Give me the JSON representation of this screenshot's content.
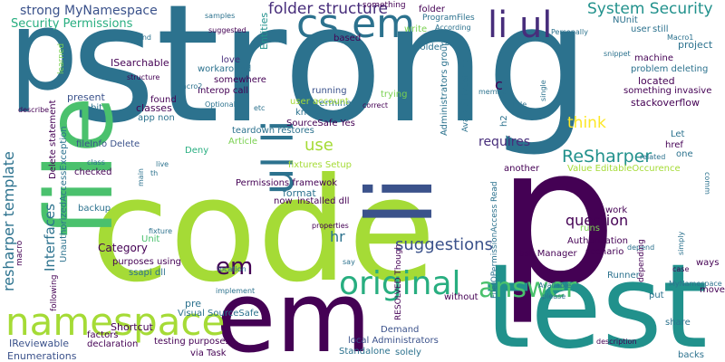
{
  "palette": {
    "lime": "#a5db36",
    "green": "#4ac16d",
    "teal": "#2c728e",
    "blue": "#3b528b",
    "indigo": "#472d7b",
    "darkpurple": "#440154",
    "cyan": "#21918c",
    "turq": "#28ae80",
    "yellowgreen": "#7ad151",
    "yellow": "#fde725"
  },
  "words": [
    {
      "text": "strong",
      "color": "teal"
    },
    {
      "text": "code",
      "color": "lime"
    },
    {
      "text": "p",
      "color": "darkpurple"
    },
    {
      "text": "test",
      "color": "cyan"
    },
    {
      "text": "em",
      "color": "darkpurple"
    },
    {
      "text": "p",
      "color": "teal"
    },
    {
      "text": "file",
      "color": "green"
    },
    {
      "text": "li",
      "color": "blue"
    },
    {
      "text": "cs em",
      "color": "teal"
    },
    {
      "text": "li ul",
      "color": "indigo"
    },
    {
      "text": "ul li",
      "color": "teal"
    },
    {
      "text": "namespace",
      "color": "lime"
    },
    {
      "text": "original",
      "color": "turq"
    },
    {
      "text": "answer",
      "color": "green"
    },
    {
      "text": "em",
      "color": "darkpurple"
    },
    {
      "text": "strong MyNamespace",
      "color": "blue"
    },
    {
      "text": "folder structure",
      "color": "indigo"
    },
    {
      "text": "System Security",
      "color": "cyan"
    },
    {
      "text": "Security Permissions",
      "color": "turq"
    },
    {
      "text": "resharper template",
      "color": "teal"
    },
    {
      "text": "Interfaces",
      "color": "teal"
    },
    {
      "text": "ReSharper",
      "color": "cyan"
    },
    {
      "text": "suggestions",
      "color": "blue"
    },
    {
      "text": "requires",
      "color": "indigo"
    },
    {
      "text": "question",
      "color": "darkpurple"
    },
    {
      "text": "think",
      "color": "yellow"
    },
    {
      "text": "use",
      "color": "lime"
    },
    {
      "text": "c",
      "color": "darkpurple"
    },
    {
      "text": "hr",
      "color": "teal"
    },
    {
      "text": "Category",
      "color": "darkpurple"
    },
    {
      "text": "ISearchable",
      "color": "darkpurple"
    },
    {
      "text": "Entities",
      "color": "cyan"
    },
    {
      "text": "love",
      "color": "indigo"
    },
    {
      "text": "workaround",
      "color": "teal"
    },
    {
      "text": "somewhere",
      "color": "darkpurple"
    },
    {
      "text": "Interop call",
      "color": "darkpurple"
    },
    {
      "text": "running",
      "color": "blue"
    },
    {
      "text": "determine",
      "color": "teal"
    },
    {
      "text": "user account",
      "color": "lime"
    },
    {
      "text": "know",
      "color": "teal"
    },
    {
      "text": "present",
      "color": "blue"
    },
    {
      "text": "found",
      "color": "darkpurple"
    },
    {
      "text": "bit",
      "color": "teal"
    },
    {
      "text": "classes",
      "color": "darkpurple"
    },
    {
      "text": "app non",
      "color": "teal"
    },
    {
      "text": "Article",
      "color": "yellowgreen"
    },
    {
      "text": "teardown restores",
      "color": "teal"
    },
    {
      "text": "Deny",
      "color": "turq"
    },
    {
      "text": "SourceSafe Yes",
      "color": "darkpurple"
    },
    {
      "text": "fixtures Setup",
      "color": "lime"
    },
    {
      "text": "Permissions framewok",
      "color": "darkpurple"
    },
    {
      "text": "format",
      "color": "teal"
    },
    {
      "text": "now",
      "color": "darkpurple"
    },
    {
      "text": "installed dll",
      "color": "darkpurple"
    },
    {
      "text": "fileInfo Delete",
      "color": "blue"
    },
    {
      "text": "checked",
      "color": "darkpurple"
    },
    {
      "text": "backup",
      "color": "teal"
    },
    {
      "text": "Unit",
      "color": "green"
    },
    {
      "text": "purposes using",
      "color": "darkpurple"
    },
    {
      "text": "ssapi dll",
      "color": "teal"
    },
    {
      "text": "pre",
      "color": "teal"
    },
    {
      "text": "Visual SourceSafe",
      "color": "teal"
    },
    {
      "text": "Shortcut",
      "color": "darkpurple"
    },
    {
      "text": "via Task",
      "color": "darkpurple"
    },
    {
      "text": "testing purposes",
      "color": "darkpurple"
    },
    {
      "text": "IReviewable",
      "color": "blue"
    },
    {
      "text": "Enumerations",
      "color": "blue"
    },
    {
      "text": "declaration",
      "color": "darkpurple"
    },
    {
      "text": "factors",
      "color": "darkpurple"
    },
    {
      "text": "local Administrators",
      "color": "blue"
    },
    {
      "text": "Demand",
      "color": "blue"
    },
    {
      "text": "Standalone",
      "color": "teal"
    },
    {
      "text": "solely",
      "color": "teal"
    },
    {
      "text": "without",
      "color": "darkpurple"
    },
    {
      "text": "Task Manager",
      "color": "darkpurple"
    },
    {
      "text": "Authorization",
      "color": "darkpurple"
    },
    {
      "text": "Value EditableOccurence",
      "color": "lime"
    },
    {
      "text": "another",
      "color": "darkpurple"
    },
    {
      "text": "stackoverflow",
      "color": "darkpurple"
    },
    {
      "text": "something invasive",
      "color": "darkpurple"
    },
    {
      "text": "located",
      "color": "darkpurple"
    },
    {
      "text": "problem deleting",
      "color": "teal"
    },
    {
      "text": "machine",
      "color": "darkpurple"
    },
    {
      "text": "project",
      "color": "teal"
    },
    {
      "text": "NUnit",
      "color": "teal"
    },
    {
      "text": "user",
      "color": "teal"
    },
    {
      "text": "still",
      "color": "teal"
    },
    {
      "text": "Macro1",
      "color": "teal"
    },
    {
      "text": "snippet",
      "color": "teal"
    },
    {
      "text": "Let",
      "color": "teal"
    },
    {
      "text": "href",
      "color": "darkpurple"
    },
    {
      "text": "one",
      "color": "teal"
    },
    {
      "text": "related",
      "color": "teal"
    },
    {
      "text": "runs",
      "color": "yellowgreen"
    },
    {
      "text": "work",
      "color": "darkpurple"
    },
    {
      "text": "scenario",
      "color": "darkpurple"
    },
    {
      "text": "ways",
      "color": "darkpurple"
    },
    {
      "text": "move",
      "color": "darkpurple"
    },
    {
      "text": "put",
      "color": "teal"
    },
    {
      "text": "share",
      "color": "teal"
    },
    {
      "text": "backs",
      "color": "teal"
    },
    {
      "text": "description",
      "color": "darkpurple"
    },
    {
      "text": "MyNamespace",
      "color": "teal"
    },
    {
      "text": "Runner",
      "color": "teal"
    },
    {
      "text": "please",
      "color": "teal"
    },
    {
      "text": "Available",
      "color": "teal"
    },
    {
      "text": "something",
      "color": "darkpurple"
    },
    {
      "text": "folder",
      "color": "darkpurple"
    },
    {
      "text": "ProgramFiles",
      "color": "teal"
    },
    {
      "text": "write",
      "color": "yellowgreen"
    },
    {
      "text": "According",
      "color": "teal"
    },
    {
      "text": "Personally",
      "color": "teal"
    },
    {
      "text": "based",
      "color": "darkpurple"
    },
    {
      "text": "folder",
      "color": "teal"
    },
    {
      "text": "trying",
      "color": "yellowgreen"
    },
    {
      "text": "correct",
      "color": "darkpurple"
    },
    {
      "text": "member",
      "color": "teal"
    },
    {
      "text": "Title",
      "color": "teal"
    },
    {
      "text": "h2",
      "color": "teal"
    },
    {
      "text": "samples",
      "color": "teal"
    },
    {
      "text": "suggested",
      "color": "darkpurple"
    },
    {
      "text": "kind",
      "color": "teal"
    },
    {
      "text": "structure",
      "color": "darkpurple"
    },
    {
      "text": "Macro2",
      "color": "teal"
    },
    {
      "text": "Optional",
      "color": "teal"
    },
    {
      "text": "etc",
      "color": "teal"
    },
    {
      "text": "describe",
      "color": "darkpurple"
    },
    {
      "text": "class",
      "color": "teal"
    },
    {
      "text": "live",
      "color": "teal"
    },
    {
      "text": "th",
      "color": "teal"
    },
    {
      "text": "fixture",
      "color": "teal"
    },
    {
      "text": "location",
      "color": "teal"
    },
    {
      "text": "implement",
      "color": "teal"
    },
    {
      "text": "properties",
      "color": "darkpurple"
    },
    {
      "text": "say",
      "color": "teal"
    },
    {
      "text": "depend",
      "color": "teal"
    },
    {
      "text": "case",
      "color": "darkpurple"
    },
    {
      "text": "simply",
      "color": "teal"
    },
    {
      "text": "learned",
      "color": "yellowgreen"
    },
    {
      "text": "Administrators group",
      "color": "teal"
    },
    {
      "text": "AvailabilitySetting",
      "color": "teal"
    },
    {
      "text": "single",
      "color": "teal"
    },
    {
      "text": "Delete statement",
      "color": "darkpurple"
    },
    {
      "text": "UnauthorizedAccessException",
      "color": "teal"
    },
    {
      "text": "FileIOPermissionAccess Read",
      "color": "teal"
    },
    {
      "text": "RESOLVED Though",
      "color": "darkpurple"
    },
    {
      "text": "main",
      "color": "teal"
    },
    {
      "text": "macro",
      "color": "darkpurple"
    },
    {
      "text": "following",
      "color": "darkpurple"
    },
    {
      "text": "depending",
      "color": "darkpurple"
    },
    {
      "text": "comm",
      "color": "teal"
    }
  ]
}
